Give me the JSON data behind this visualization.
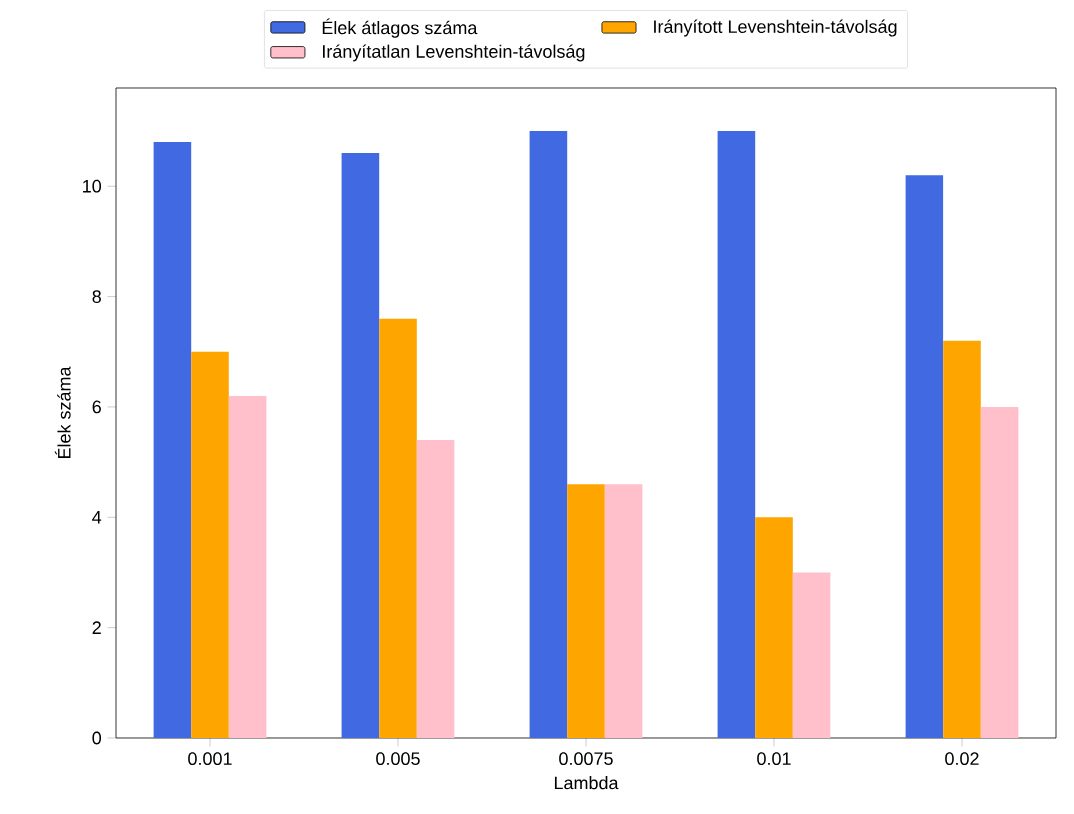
{
  "chart_data": {
    "type": "bar",
    "xlabel": "Lambda",
    "ylabel": "Élek száma",
    "categories": [
      "0.001",
      "0.005",
      "0.0075",
      "0.01",
      "0.02"
    ],
    "series": [
      {
        "name": "Élek átlagos száma",
        "color": "#4169e1",
        "values": [
          10.8,
          10.6,
          11.0,
          11.0,
          10.2
        ]
      },
      {
        "name": "Irányított Levenshtein-távolság",
        "color": "#ffa500",
        "values": [
          7.0,
          7.6,
          4.6,
          4.0,
          7.2
        ]
      },
      {
        "name": "Irányítatlan Levenshtein-távolság",
        "color": "#ffc0cb",
        "values": [
          6.2,
          5.4,
          4.6,
          3.0,
          6.0
        ]
      }
    ],
    "ylim": [
      0,
      11.78
    ],
    "yticks": [
      0,
      2,
      4,
      6,
      8,
      10
    ],
    "legend": "top",
    "grid": false
  }
}
